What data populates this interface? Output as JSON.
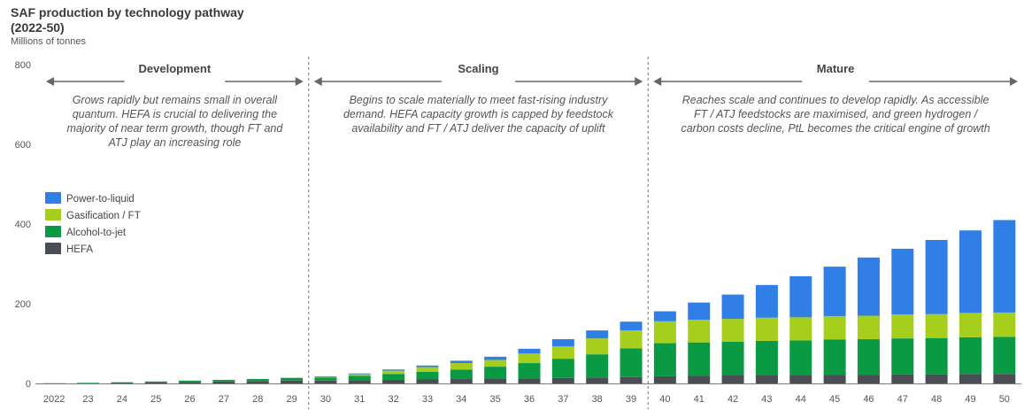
{
  "title_line1": "SAF production by technology pathway",
  "title_line2": "(2022-50)",
  "unit": "Millions of tonnes",
  "colors": {
    "ptl": "#2f7fe6",
    "ft": "#a6ce1c",
    "atj": "#0a9a44",
    "hefa": "#4a4e54"
  },
  "phases": [
    {
      "name": "Development",
      "desc": [
        "Grows rapidly but remains small in overall",
        "quantum. HEFA is crucial to delivering the",
        "majority of near term growth, though FT and",
        "ATJ play an increasing role"
      ]
    },
    {
      "name": "Scaling",
      "desc": [
        "Begins to scale materially to meet fast-rising industry",
        "demand. HEFA capacity growth is capped by feedstock",
        "availability and FT / ATJ deliver the capacity of uplift"
      ]
    },
    {
      "name": "Mature",
      "desc": [
        "Reaches scale and continues to develop rapidly. As accessible",
        "FT / ATJ feedstocks are maximised, and green hydrogen /",
        "carbon costs decline, PtL becomes the critical engine of growth"
      ]
    }
  ],
  "chart_data": {
    "type": "bar",
    "stacked": true,
    "categories": [
      "2022",
      "23",
      "24",
      "25",
      "26",
      "27",
      "28",
      "29",
      "30",
      "31",
      "32",
      "33",
      "34",
      "35",
      "36",
      "37",
      "38",
      "39",
      "40",
      "41",
      "42",
      "43",
      "44",
      "45",
      "46",
      "47",
      "48",
      "49",
      "50"
    ],
    "ylim": [
      0,
      800
    ],
    "yticks": [
      0,
      200,
      400,
      600,
      800
    ],
    "legend_position": "left",
    "series": [
      {
        "name": "HEFA",
        "key": "hefa",
        "values": [
          0.5,
          1,
          2,
          3,
          4,
          5,
          6,
          7,
          7,
          8,
          9,
          10,
          11,
          12,
          13,
          14,
          15,
          16,
          18,
          19,
          20,
          21,
          21,
          22,
          22,
          23,
          23,
          24,
          24
        ]
      },
      {
        "name": "Alcohol-to-jet",
        "key": "atj",
        "values": [
          0,
          0.5,
          1,
          2,
          3,
          4,
          5,
          7,
          8,
          11,
          15,
          19,
          24,
          30,
          38,
          48,
          58,
          72,
          83,
          84,
          85,
          86,
          87,
          88,
          89,
          90,
          91,
          92,
          93
        ]
      },
      {
        "name": "Gasification / FT",
        "key": "ft",
        "values": [
          0,
          0,
          0,
          0,
          0,
          0,
          0,
          0,
          2,
          4,
          8,
          12,
          16,
          17,
          24,
          31,
          40,
          45,
          55,
          57,
          57,
          58,
          58,
          59,
          59,
          60,
          60,
          61,
          61
        ]
      },
      {
        "name": "Power-to-liquid",
        "key": "ptl",
        "values": [
          0,
          0,
          0,
          0,
          0,
          0,
          0,
          0,
          1,
          2,
          3,
          4,
          6,
          8,
          12,
          18,
          20,
          22,
          25,
          43,
          61,
          82,
          103,
          124,
          146,
          165,
          186,
          207,
          232
        ]
      }
    ]
  }
}
